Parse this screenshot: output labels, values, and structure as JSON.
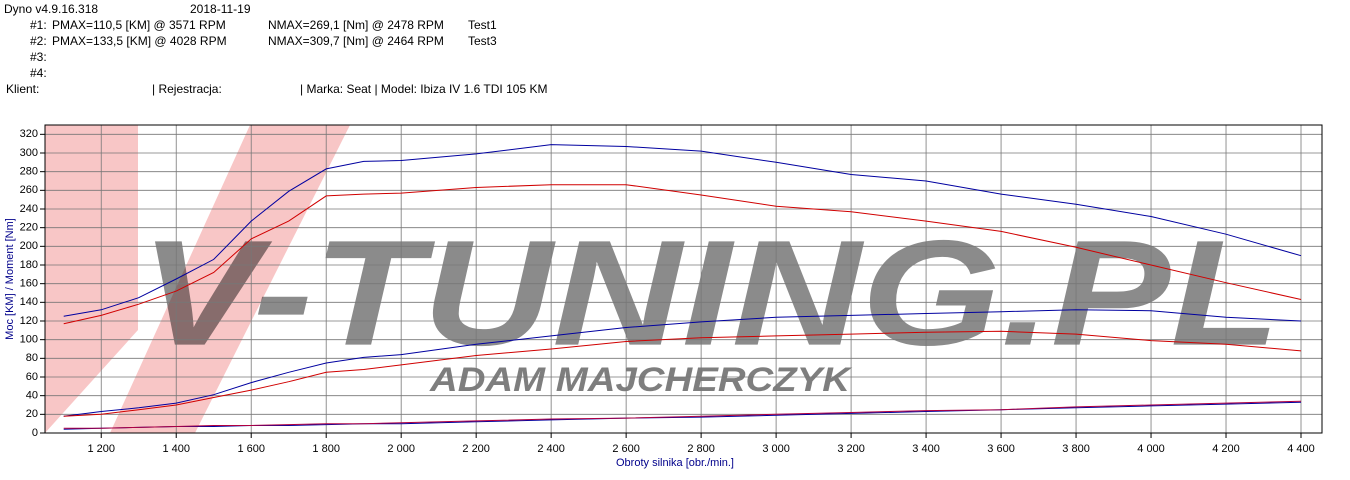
{
  "header": {
    "program": "Dyno v4.9.16.318",
    "date": "2018-11-19",
    "runs": [
      {
        "id": "#1:",
        "pmax": "PMAX=110,5 [KM] @ 3571 RPM",
        "nmax": "NMAX=269,1 [Nm] @ 2478 RPM",
        "name": "Test1"
      },
      {
        "id": "#2:",
        "pmax": "PMAX=133,5 [KM] @ 4028 RPM",
        "nmax": "NMAX=309,7 [Nm] @ 2464 RPM",
        "name": "Test3"
      },
      {
        "id": "#3:"
      },
      {
        "id": "#4:"
      }
    ],
    "client": "Klient:",
    "registration": "| Rejestracja:",
    "vehicle": "| Marka: Seat | Model: Ibiza IV 1.6 TDI 105 KM"
  },
  "chart_data": {
    "type": "line",
    "xlabel": "Obroty silnika [obr./min.]",
    "ylabel": "Moc [KM] / Moment [Nm]",
    "watermark": "V-TUNING.PL",
    "watermark_sub": "ADAM MAJCHERCZYK",
    "x": [
      1100,
      1200,
      1300,
      1400,
      1500,
      1600,
      1700,
      1800,
      1900,
      2000,
      2200,
      2400,
      2600,
      2800,
      3000,
      3200,
      3400,
      3600,
      3800,
      4000,
      4200,
      4400
    ],
    "series": [
      {
        "color": "#0000a0",
        "values": [
          125,
          132,
          145,
          165,
          186,
          227,
          259,
          283,
          291,
          292,
          299,
          309,
          307,
          302,
          290,
          277,
          270,
          256,
          245,
          232,
          213,
          190
        ]
      },
      {
        "color": "#d00000",
        "values": [
          117,
          126,
          138,
          152,
          172,
          208,
          227,
          254,
          256,
          257,
          263,
          266,
          266,
          255,
          243,
          237,
          227,
          216,
          199,
          180,
          161,
          143
        ]
      },
      {
        "color": "#0000a0",
        "values": [
          18,
          23,
          27,
          32,
          41,
          54,
          65,
          75,
          81,
          84,
          95,
          104,
          113,
          119,
          124,
          126,
          128,
          130,
          132,
          131,
          124,
          120
        ]
      },
      {
        "color": "#d00000",
        "values": [
          18,
          20,
          25,
          30,
          38,
          46,
          55,
          65,
          68,
          73,
          83,
          90,
          98,
          102,
          104,
          106,
          108,
          109,
          106,
          99,
          95,
          88
        ]
      },
      {
        "color": "#0000a0",
        "values": [
          4,
          5,
          6,
          7,
          7,
          8,
          8,
          9,
          10,
          10,
          12,
          14,
          16,
          17,
          19,
          21,
          23,
          25,
          27,
          29,
          31,
          33
        ]
      },
      {
        "color": "#b00040",
        "values": [
          5,
          5,
          6,
          7,
          8,
          8,
          9,
          10,
          10,
          11,
          13,
          15,
          16,
          18,
          20,
          22,
          24,
          25,
          28,
          30,
          32,
          34
        ]
      }
    ],
    "xlim": [
      1050,
      4456
    ],
    "ylim": [
      0,
      330
    ],
    "xticks": [
      {
        "value": 1200,
        "label": "1 200"
      },
      {
        "value": 1400,
        "label": "1 400"
      },
      {
        "value": 1600,
        "label": "1 600"
      },
      {
        "value": 1800,
        "label": "1 800"
      },
      {
        "value": 2000,
        "label": "2 000"
      },
      {
        "value": 2200,
        "label": "2 200"
      },
      {
        "value": 2400,
        "label": "2 400"
      },
      {
        "value": 2600,
        "label": "2 600"
      },
      {
        "value": 2800,
        "label": "2 800"
      },
      {
        "value": 3000,
        "label": "3 000"
      },
      {
        "value": 3200,
        "label": "3 200"
      },
      {
        "value": 3400,
        "label": "3 400"
      },
      {
        "value": 3600,
        "label": "3 600"
      },
      {
        "value": 3800,
        "label": "3 800"
      },
      {
        "value": 4000,
        "label": "4 000"
      },
      {
        "value": 4200,
        "label": "4 200"
      },
      {
        "value": 4400,
        "label": "4 400"
      }
    ],
    "yticks": [
      0,
      20,
      40,
      60,
      80,
      100,
      120,
      140,
      160,
      180,
      200,
      220,
      240,
      260,
      280,
      300,
      320
    ],
    "grid": true
  }
}
